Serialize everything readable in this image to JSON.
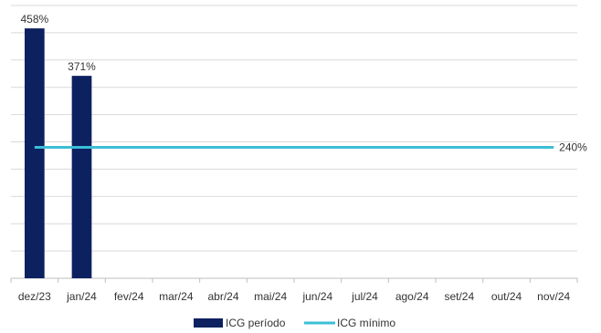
{
  "chart_data": {
    "type": "bar",
    "categories": [
      "dez/23",
      "jan/24",
      "fev/24",
      "mar/24",
      "abr/24",
      "mai/24",
      "jun/24",
      "jul/24",
      "ago/24",
      "set/24",
      "out/24",
      "nov/24"
    ],
    "series": [
      {
        "name": "ICG período",
        "type": "bar",
        "values": [
          458,
          371,
          null,
          null,
          null,
          null,
          null,
          null,
          null,
          null,
          null,
          null
        ],
        "labels": [
          "458%",
          "371%",
          "",
          "",
          "",
          "",
          "",
          "",
          "",
          "",
          "",
          ""
        ],
        "color": "#0d2060"
      },
      {
        "name": "ICG mínimo",
        "type": "line",
        "values": [
          240,
          240,
          240,
          240,
          240,
          240,
          240,
          240,
          240,
          240,
          240,
          240
        ],
        "end_label": "240%",
        "color": "#3bbfd6"
      }
    ],
    "ylim": [
      0,
      500
    ],
    "y_gridlines": [
      50,
      100,
      150,
      200,
      250,
      300,
      350,
      400,
      450,
      500
    ],
    "y_tick_labels_visible": false,
    "legend_position": "bottom-center",
    "grid": true
  }
}
